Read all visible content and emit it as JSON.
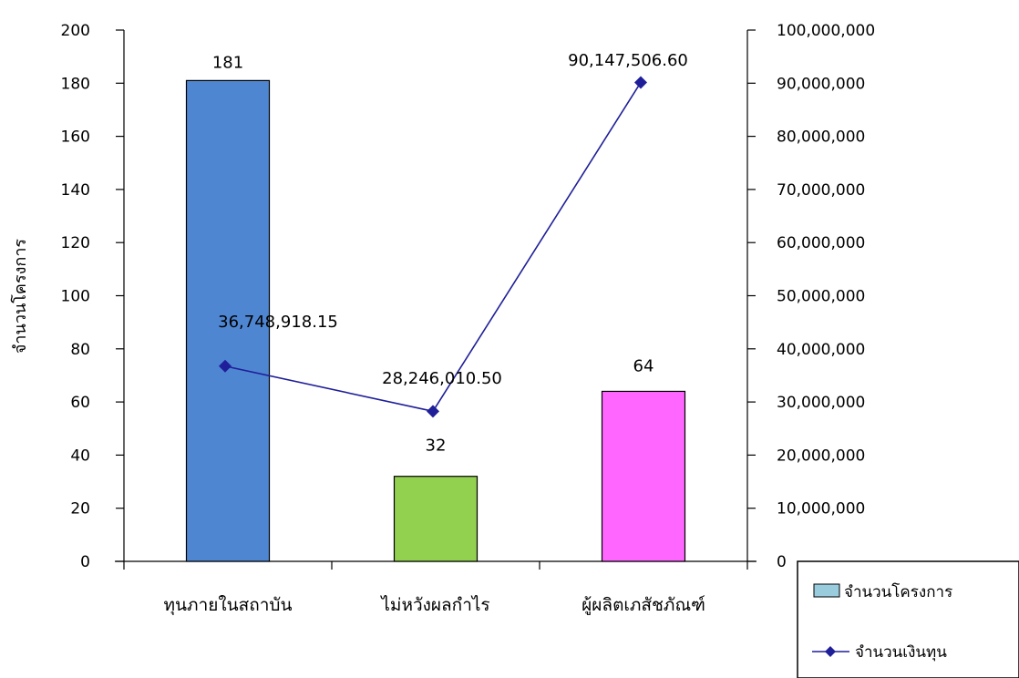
{
  "chart_data": {
    "type": "bar",
    "title": "",
    "xlabel": "",
    "ylabel": "จำนวนโครงการ",
    "y2label": "",
    "ylim": [
      0,
      200
    ],
    "y2lim": [
      0,
      100000000
    ],
    "yticks": [
      "0",
      "20",
      "40",
      "60",
      "80",
      "100",
      "120",
      "140",
      "160",
      "180",
      "200"
    ],
    "y2ticks": [
      "0",
      "10,000,000",
      "20,000,000",
      "30,000,000",
      "40,000,000",
      "50,000,000",
      "60,000,000",
      "70,000,000",
      "80,000,000",
      "90,000,000",
      "100,000,000"
    ],
    "categories": [
      "ทุนภายในสถาบัน",
      "ไม่หวังผลกำไร",
      "ผู้ผลิตเภสัชภัณฑ์"
    ],
    "grid": false,
    "legend_position": "bottom-right",
    "series": [
      {
        "name": "จำนวนโครงการ",
        "type": "bar",
        "axis": "left",
        "values": [
          181,
          32,
          64
        ],
        "labels": [
          "181",
          "32",
          "64"
        ],
        "colors": [
          "#4f86d2",
          "#92d050",
          "#ff66ff"
        ]
      },
      {
        "name": "จำนวนเงินทุน",
        "type": "line",
        "axis": "right",
        "values": [
          36748918.15,
          28246010.5,
          90147506.6
        ],
        "labels": [
          "36,748,918.15",
          "28,246,010.50",
          "90,147,506.60"
        ],
        "color": "#1f1f99"
      }
    ],
    "legend_bar_swatch_color": "#99ccdd"
  }
}
